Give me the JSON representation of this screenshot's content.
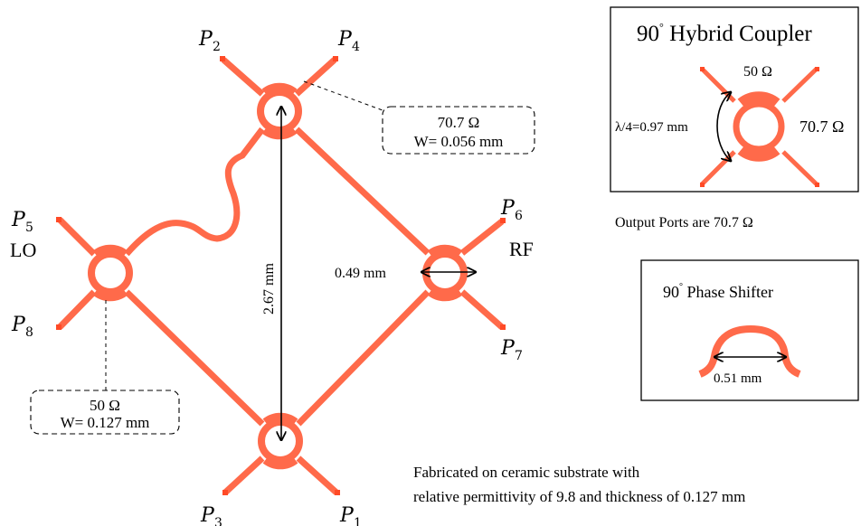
{
  "colors": {
    "trace": "#ff6a4a",
    "port": "#ff4a26",
    "ink": "#000000",
    "box_stroke": "#000000"
  },
  "ports": {
    "p1": {
      "letter": "P",
      "index": "1"
    },
    "p2": {
      "letter": "P",
      "index": "2"
    },
    "p3": {
      "letter": "P",
      "index": "3"
    },
    "p4": {
      "letter": "P",
      "index": "4"
    },
    "p5": {
      "letter": "P",
      "index": "5"
    },
    "p6": {
      "letter": "P",
      "index": "6"
    },
    "p7": {
      "letter": "P",
      "index": "7"
    },
    "p8": {
      "letter": "P",
      "index": "8"
    }
  },
  "port_names": {
    "lo": "LO",
    "rf": "RF"
  },
  "dimensions": {
    "vertical": "2.67 mm",
    "ring_diameter": "0.49 mm"
  },
  "callouts": {
    "top": {
      "impedance": "70.7 Ω",
      "width": "W= 0.056 mm"
    },
    "bottom": {
      "impedance": "50 Ω",
      "width": "W= 0.127 mm"
    }
  },
  "hybrid_inset": {
    "title_number": "90",
    "title_degree": "°",
    "title_text": " Hybrid Coupler",
    "top_impedance": "50 Ω",
    "side_impedance": "70.7 Ω",
    "quarter_wave": "λ/4=0.97 mm"
  },
  "output_note": "Output Ports are 70.7 Ω",
  "phase_inset": {
    "title_number": "90",
    "title_degree": "°",
    "title_text": " Phase Shifter",
    "dimension": "0.51 mm"
  },
  "footnote": {
    "line1": "Fabricated on ceramic substrate with",
    "line2": "relative permittivity of 9.8  and  thickness of 0.127 mm"
  }
}
